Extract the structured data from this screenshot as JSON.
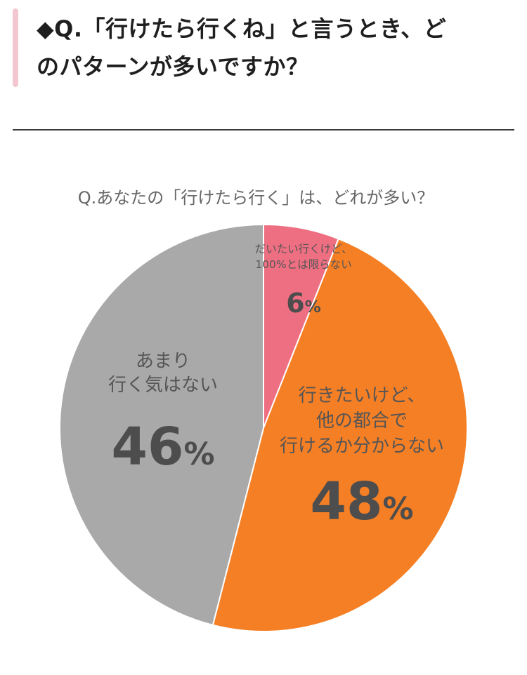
{
  "heading": {
    "marker": "◆",
    "lines": [
      "Q.「行けたら行くね」と言うとき、ど",
      "のパターンが多いですか？"
    ]
  },
  "chart_data": {
    "type": "pie",
    "title": "Q.あなたの「行けたら行く」は、どれが多い？",
    "start_angle_deg": 0,
    "direction": "clockwise",
    "slices": [
      {
        "label_lines": [
          "だいたい行くけど、",
          "100%とは限らない"
        ],
        "value": 6,
        "value_label": "6%",
        "color": "#ef6f82",
        "text_color": "#555555"
      },
      {
        "label_lines": [
          "行きたいけど、",
          "他の都合で",
          "行けるか分からない"
        ],
        "value": 48,
        "value_label": "48%",
        "color": "#f57f25",
        "text_color": "#555555"
      },
      {
        "label_lines": [
          "あまり",
          "行く気はない"
        ],
        "value": 46,
        "value_label": "46%",
        "color": "#a9a9a9",
        "text_color": "#555555"
      }
    ]
  }
}
